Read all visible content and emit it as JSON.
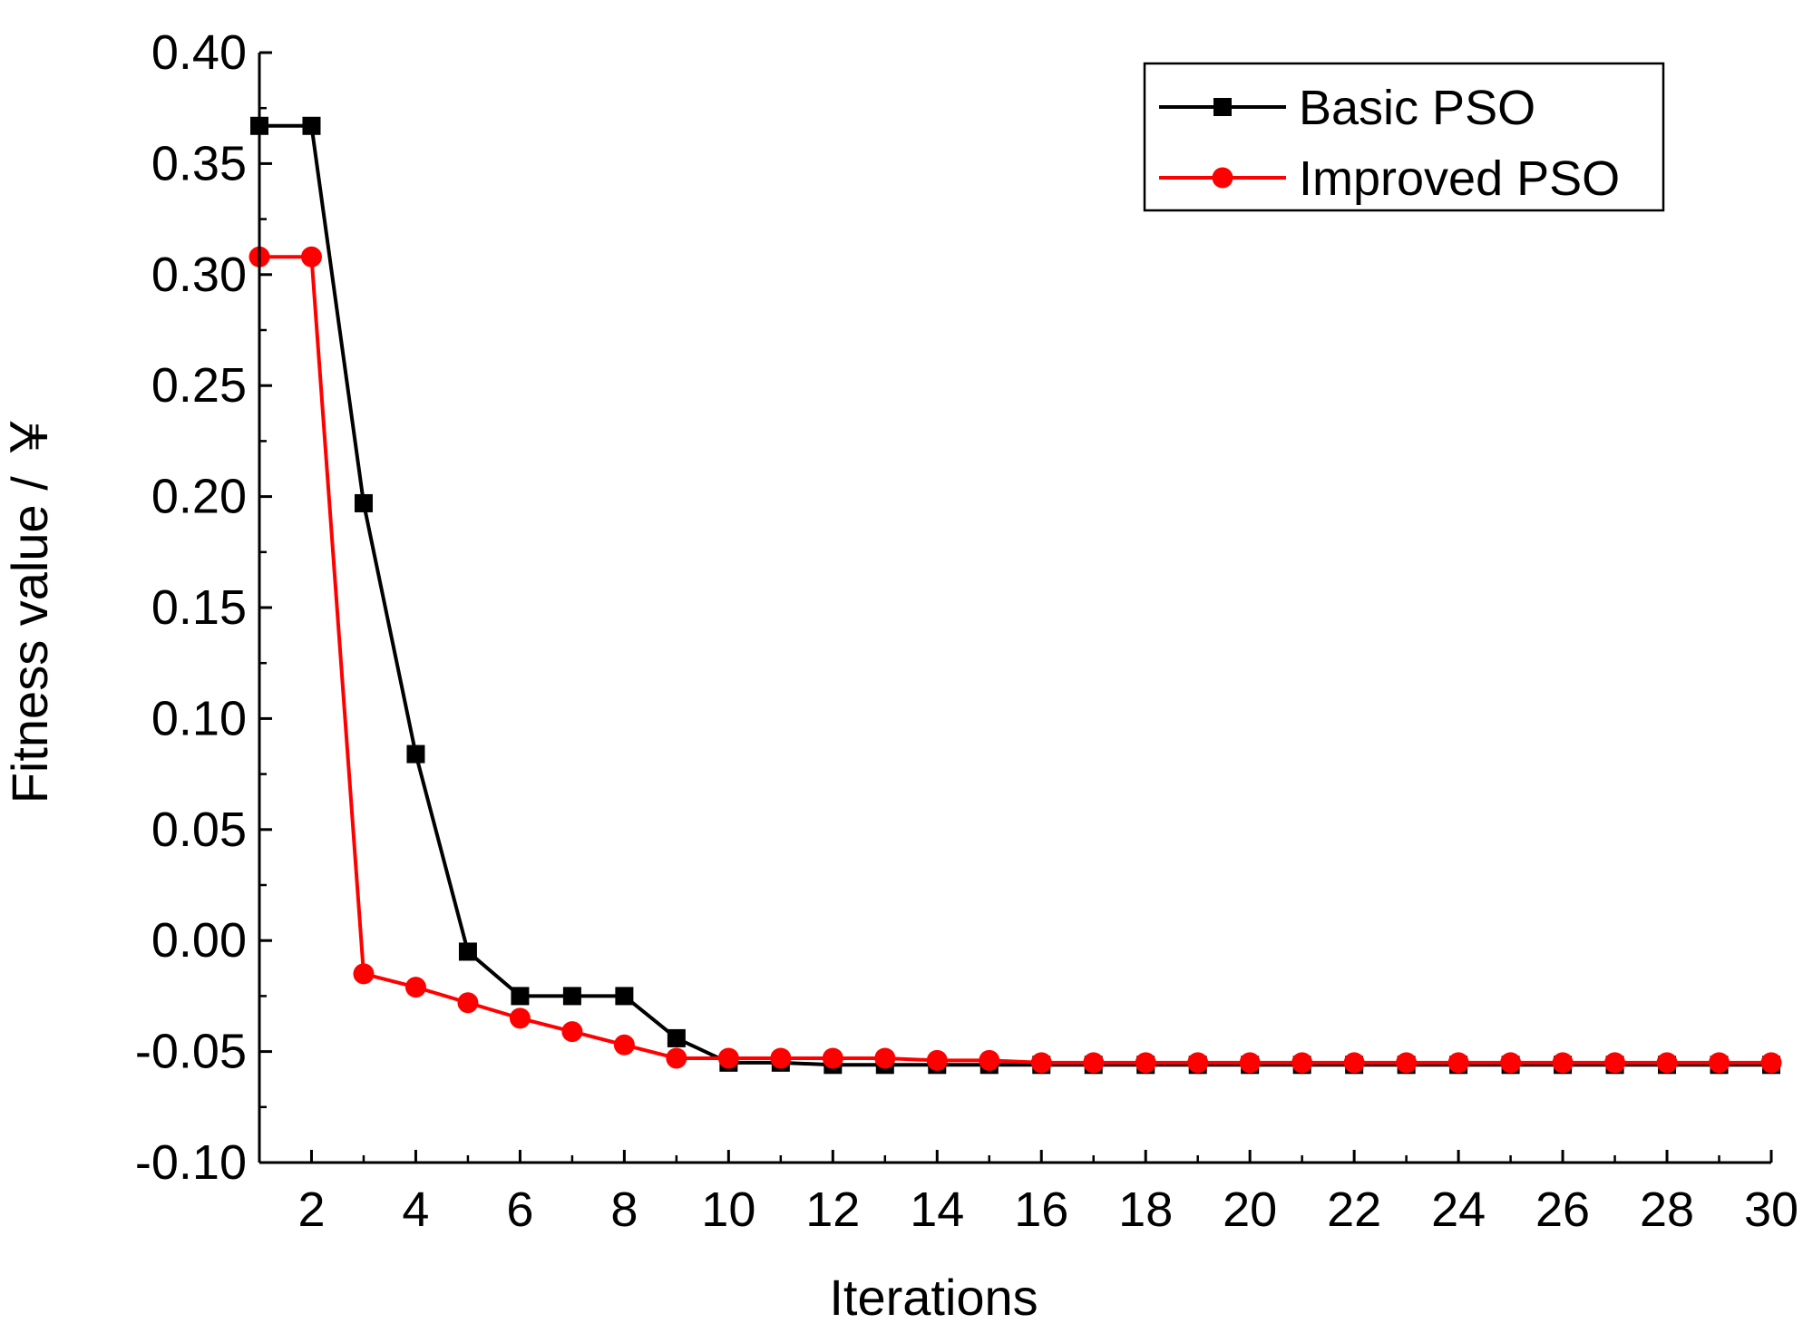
{
  "chart_data": {
    "type": "line",
    "title": "",
    "xlabel": "Iterations",
    "ylabel": "Fitness value / ￥",
    "xlim": [
      1,
      30
    ],
    "ylim": [
      -0.1,
      0.4
    ],
    "x_ticks": [
      2,
      4,
      6,
      8,
      10,
      12,
      14,
      16,
      18,
      20,
      22,
      24,
      26,
      28,
      30
    ],
    "x_tick_labels": [
      "2",
      "4",
      "6",
      "8",
      "10",
      "12",
      "14",
      "16",
      "18",
      "20",
      "22",
      "24",
      "26",
      "28",
      "30"
    ],
    "y_ticks": [
      0.4,
      0.35,
      0.3,
      0.25,
      0.2,
      0.15,
      0.1,
      0.05,
      0.0,
      -0.05,
      -0.1
    ],
    "y_tick_labels": [
      "0.40",
      "0.35",
      "0.30",
      "0.25",
      "0.20",
      "0.15",
      "0.10",
      "0.05",
      "0.00",
      "-0.05",
      "-0.10"
    ],
    "grid": false,
    "legend_position": "top-right",
    "x": [
      1,
      2,
      3,
      4,
      5,
      6,
      7,
      8,
      9,
      10,
      11,
      12,
      13,
      14,
      15,
      16,
      17,
      18,
      19,
      20,
      21,
      22,
      23,
      24,
      25,
      26,
      27,
      28,
      29,
      30
    ],
    "series": [
      {
        "name": "Basic PSO",
        "color": "#000000",
        "marker": "square",
        "values": [
          0.367,
          0.367,
          0.197,
          0.084,
          -0.005,
          -0.025,
          -0.025,
          -0.025,
          -0.044,
          -0.055,
          -0.055,
          -0.056,
          -0.056,
          -0.056,
          -0.056,
          -0.056,
          -0.056,
          -0.056,
          -0.056,
          -0.056,
          -0.056,
          -0.056,
          -0.056,
          -0.056,
          -0.056,
          -0.056,
          -0.056,
          -0.056,
          -0.056,
          -0.056
        ]
      },
      {
        "name": "Improved PSO",
        "color": "#ff0000",
        "marker": "circle",
        "values": [
          0.308,
          0.308,
          -0.015,
          -0.021,
          -0.028,
          -0.035,
          -0.041,
          -0.047,
          -0.053,
          -0.053,
          -0.053,
          -0.053,
          -0.053,
          -0.054,
          -0.054,
          -0.055,
          -0.055,
          -0.055,
          -0.055,
          -0.055,
          -0.055,
          -0.055,
          -0.055,
          -0.055,
          -0.055,
          -0.055,
          -0.055,
          -0.055,
          -0.055,
          -0.055
        ]
      }
    ]
  }
}
